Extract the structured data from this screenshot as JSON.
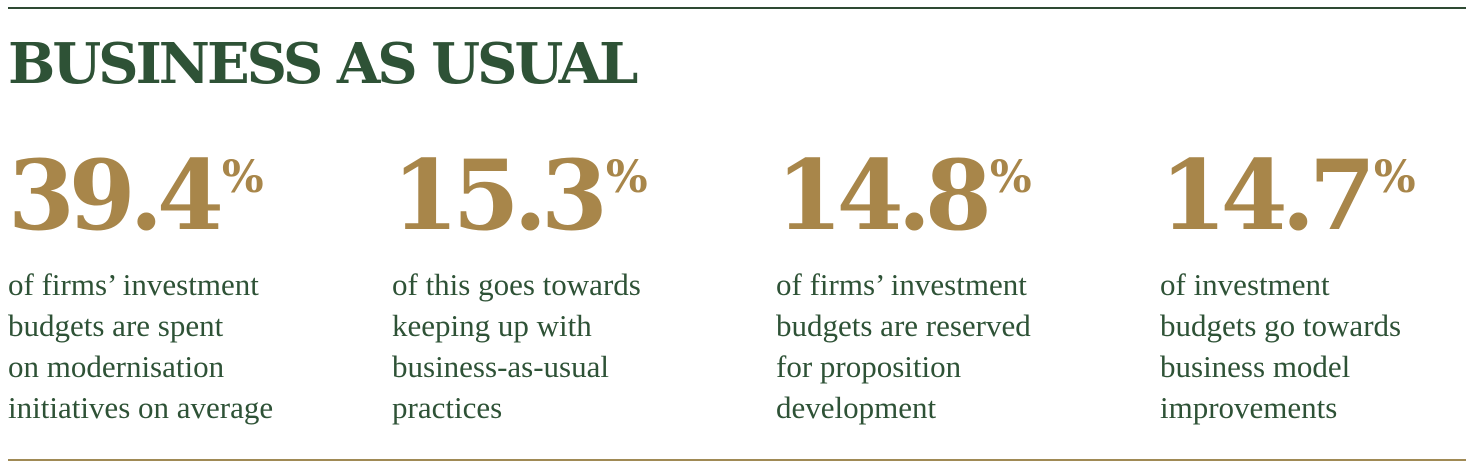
{
  "header": {
    "title": "BUSINESS AS USUAL"
  },
  "stats": [
    {
      "value": "39.4",
      "unit": "%",
      "text": "of firms’ investment\nbudgets are spent\non modernisation\ninitiatives on average"
    },
    {
      "value": "15.3",
      "unit": "%",
      "text": "of this goes towards\nkeeping up with\nbusiness-as-usual\npractices"
    },
    {
      "value": "14.8",
      "unit": "%",
      "text": "of firms’ investment\nbudgets are reserved\nfor proposition\ndevelopment"
    },
    {
      "value": "14.7",
      "unit": "%",
      "text": "of investment\nbudgets go towards\nbusiness model\nimprovements"
    }
  ],
  "colors": {
    "title": "#2e5236",
    "figure": "#a8864a",
    "body_text": "#2e5236",
    "rule_top": "#2e4a33",
    "rule_bottom": "#a08a55"
  }
}
